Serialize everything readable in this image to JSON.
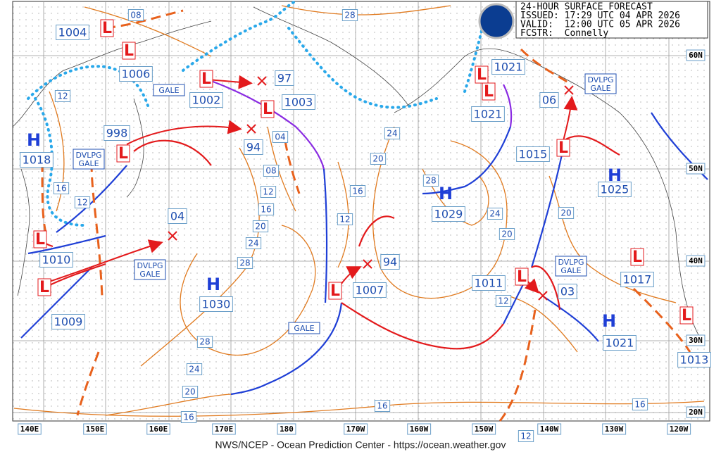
{
  "header": {
    "lines": [
      "24-HOUR SURFACE FORECAST",
      "ISSUED: 17:29 UTC 04 APR 2026",
      "VALID:  12:00 UTC 05 APR 2026",
      "FCSTR:  Connelly"
    ]
  },
  "footer": "NWS/NCEP - Ocean Prediction Center - https://ocean.weather.gov",
  "longitudes": [
    "140E",
    "150E",
    "160E",
    "170E",
    "180",
    "170W",
    "160W",
    "150W",
    "140W",
    "130W",
    "120W"
  ],
  "latitudes": [
    "60N",
    "50N",
    "40N",
    "30N",
    "20N"
  ],
  "highs": [
    {
      "symbol": "H",
      "pressure": "1018"
    },
    {
      "symbol": "H",
      "pressure": "1030"
    },
    {
      "symbol": "H",
      "pressure": "1029"
    },
    {
      "symbol": "H",
      "pressure": "1025"
    },
    {
      "symbol": "H",
      "pressure": "1021"
    }
  ],
  "lows": [
    {
      "symbol": "L",
      "pressure": "1004"
    },
    {
      "symbol": "L",
      "pressure": "1006"
    },
    {
      "symbol": "L",
      "pressure": "1002"
    },
    {
      "pressure": "97"
    },
    {
      "symbol": "L",
      "pressure": "1003"
    },
    {
      "symbol": "L",
      "pressure": "998"
    },
    {
      "pressure": "94"
    },
    {
      "pressure": "04"
    },
    {
      "symbol": "L",
      "pressure": "1010"
    },
    {
      "symbol": "L",
      "pressure": "1009"
    },
    {
      "symbol": "L",
      "pressure": "1007"
    },
    {
      "pressure": "94"
    },
    {
      "symbol": "L",
      "pressure": "1011"
    },
    {
      "pressure": "03"
    },
    {
      "symbol": "L",
      "pressure": "1021"
    },
    {
      "symbol": "L",
      "pressure": "1021"
    },
    {
      "pressure": "06"
    },
    {
      "symbol": "L",
      "pressure": "1015"
    },
    {
      "symbol": "L",
      "pressure": "1017"
    },
    {
      "symbol": "L",
      "pressure": "1013"
    }
  ],
  "isobar_labels": [
    "08",
    "28",
    "12",
    "16",
    "12",
    "04",
    "08",
    "12",
    "16",
    "20",
    "24",
    "28",
    "24",
    "20",
    "16",
    "12",
    "28",
    "24",
    "20",
    "12",
    "20",
    "28",
    "24",
    "20",
    "16",
    "16",
    "16",
    "12"
  ],
  "warnings": [
    [
      "GALE"
    ],
    [
      "DVLPG",
      "GALE"
    ],
    [
      "DVLPG",
      "GALE"
    ],
    [
      "GALE"
    ],
    [
      "DVLPG",
      "GALE"
    ],
    [
      "DVLPG",
      "GALE"
    ]
  ]
}
